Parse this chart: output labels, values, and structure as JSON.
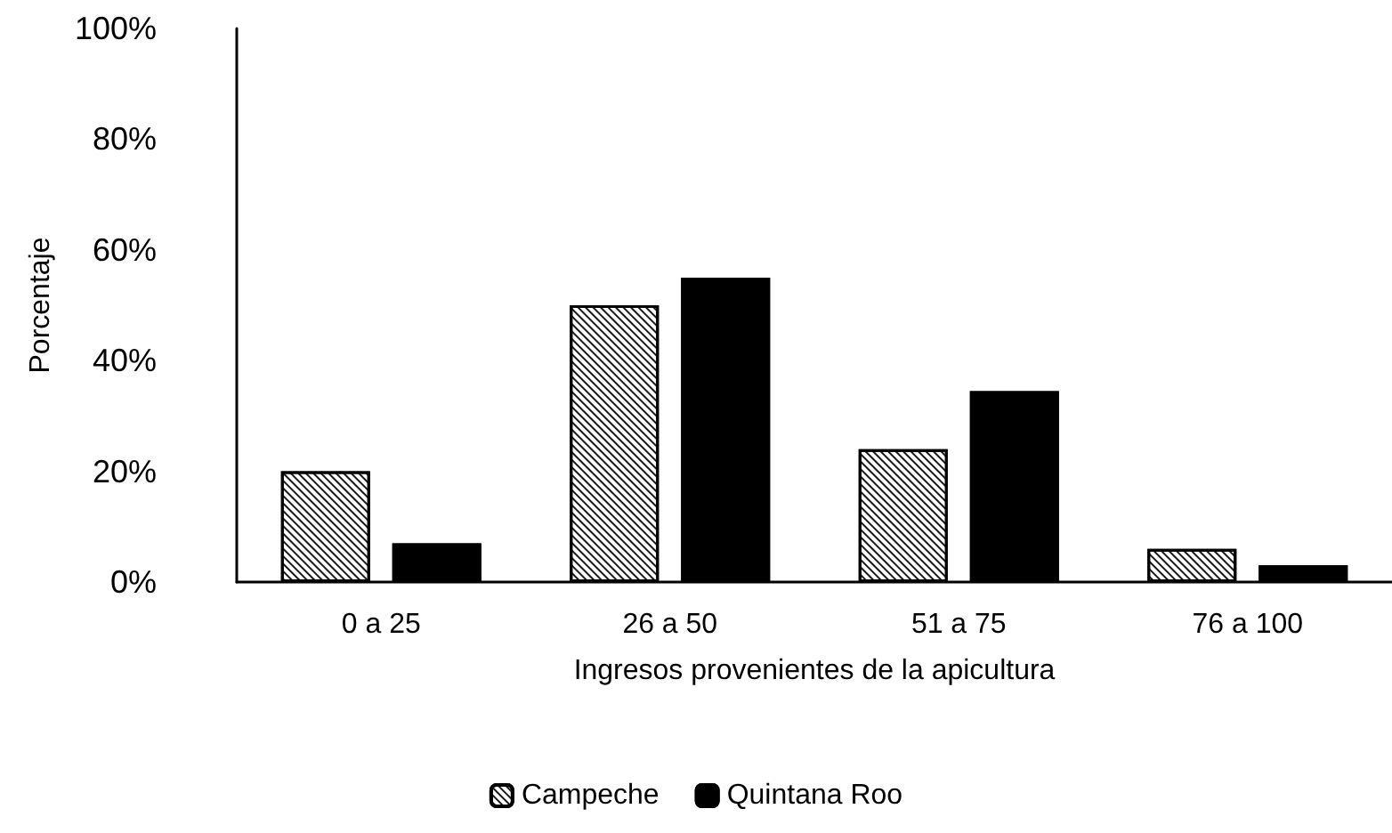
{
  "chart_data": {
    "type": "bar",
    "xlabel": "Ingresos provenientes de la apicultura",
    "ylabel": "Porcentaje",
    "categories": [
      "0 a 25",
      "26 a 50",
      "51 a 75",
      "76 a 100"
    ],
    "series": [
      {
        "name": "Campeche",
        "color": "#ffffff",
        "values": [
          20,
          50,
          24,
          6
        ]
      },
      {
        "name": "Quintana Roo",
        "color": "#000000",
        "values": [
          7,
          55,
          34.5,
          3
        ]
      }
    ],
    "ylim": [
      0,
      100
    ],
    "yticks": [
      {
        "value": 0,
        "label": "0%"
      },
      {
        "value": 20,
        "label": "20%"
      },
      {
        "value": 40,
        "label": "40%"
      },
      {
        "value": 60,
        "label": "60%"
      },
      {
        "value": 80,
        "label": "80%"
      },
      {
        "value": 100,
        "label": "100%"
      }
    ],
    "grid": false,
    "legend": "bottom"
  }
}
